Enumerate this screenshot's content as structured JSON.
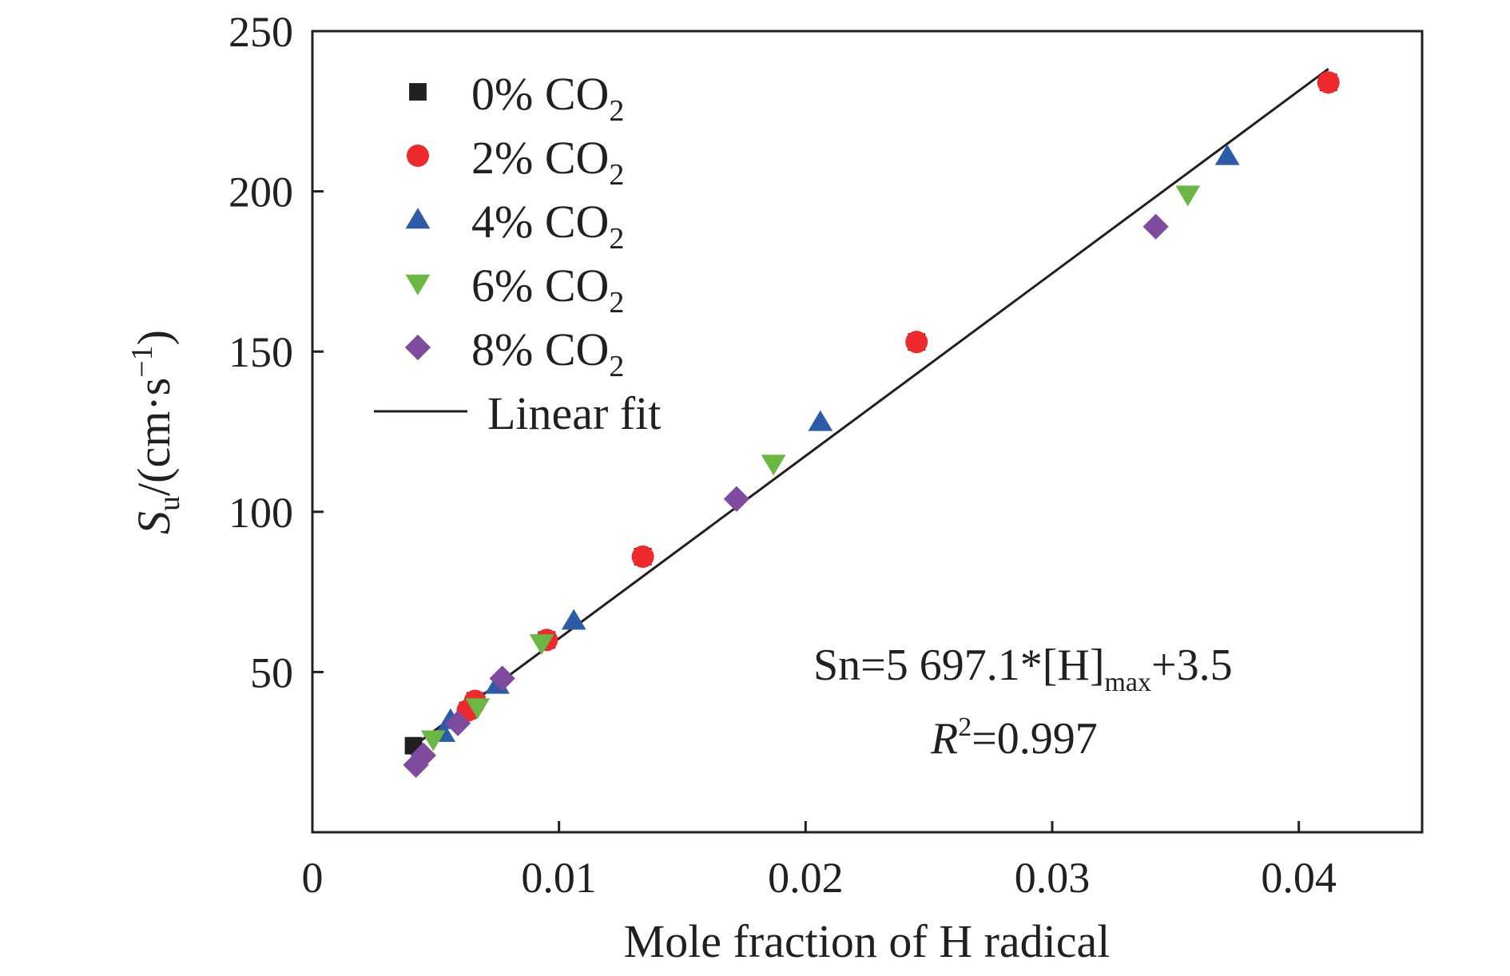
{
  "chart_data": {
    "type": "scatter",
    "xlabel": "Mole fraction of H radical",
    "ylabel": {
      "symbol": "S",
      "symbol_sub": "u",
      "unit_open": "/(cm·s",
      "unit_sup": "−1",
      "unit_close": ")"
    },
    "xlim": [
      0,
      0.045
    ],
    "ylim": [
      0,
      250
    ],
    "x_ticks": [
      0,
      0.01,
      0.02,
      0.03,
      0.04
    ],
    "x_tick_labels": [
      "0",
      "0.01",
      "0.02",
      "0.03",
      "0.04"
    ],
    "y_ticks": [
      50,
      100,
      150,
      200,
      250
    ],
    "y_tick_labels": [
      "50",
      "100",
      "150",
      "200",
      "250"
    ],
    "legend_position": "top-left",
    "series": [
      {
        "name": "0% CO",
        "name_sub": "2",
        "marker": "square",
        "color": "#231f20",
        "points": [
          [
            0.0041,
            27
          ],
          [
            0.0063,
            38
          ],
          [
            0.0066,
            41
          ],
          [
            0.0095,
            60
          ],
          [
            0.0134,
            86
          ],
          [
            0.0245,
            153
          ],
          [
            0.0412,
            234
          ]
        ]
      },
      {
        "name": "2% CO",
        "name_sub": "2",
        "marker": "circle",
        "color": "#ee2a2e",
        "points": [
          [
            0.0063,
            38
          ],
          [
            0.0066,
            41
          ],
          [
            0.0095,
            60
          ],
          [
            0.0134,
            86
          ],
          [
            0.0245,
            153
          ],
          [
            0.0412,
            234
          ]
        ]
      },
      {
        "name": "4% CO",
        "name_sub": "2",
        "marker": "triangle-up",
        "color": "#2e5ba8",
        "points": [
          [
            0.0053,
            31
          ],
          [
            0.0056,
            35
          ],
          [
            0.0075,
            46
          ],
          [
            0.0106,
            66
          ],
          [
            0.0206,
            128
          ],
          [
            0.0371,
            211
          ]
        ]
      },
      {
        "name": "6% CO",
        "name_sub": "2",
        "marker": "triangle-down",
        "color": "#6ab744",
        "points": [
          [
            0.0049,
            29
          ],
          [
            0.0067,
            39
          ],
          [
            0.0093,
            59
          ],
          [
            0.0187,
            115
          ],
          [
            0.0355,
            199
          ]
        ]
      },
      {
        "name": "8% CO",
        "name_sub": "2",
        "marker": "diamond",
        "color": "#7e4b9e",
        "points": [
          [
            0.0042,
            21
          ],
          [
            0.0045,
            24
          ],
          [
            0.0059,
            34
          ],
          [
            0.0077,
            48
          ],
          [
            0.0172,
            104
          ],
          [
            0.0342,
            189
          ]
        ]
      }
    ],
    "fit": {
      "name": "Linear fit",
      "color": "#231f20",
      "slope": 5697.1,
      "intercept": 3.5,
      "x_range": [
        0.0041,
        0.0412
      ]
    },
    "annotation": {
      "line1": {
        "prefix": "Sn=5 697.1*[H]",
        "sub": "max",
        "suffix": "+3.5"
      },
      "line2": {
        "symbol": "R",
        "sup": "2",
        "suffix": "=0.997"
      }
    }
  }
}
